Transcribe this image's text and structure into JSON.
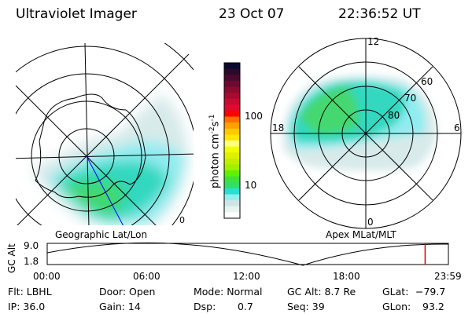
{
  "header": {
    "instrument": "Ultraviolet Imager",
    "date": "23 Oct 07",
    "time": "22:36:52 UT"
  },
  "left_map": {
    "label": "Geographic Lat/Lon"
  },
  "right_map": {
    "label": "Apex MLat/MLT",
    "mlt_labels": [
      "12",
      "6",
      "0",
      "18"
    ],
    "lat_labels": [
      "60",
      "70",
      "80"
    ]
  },
  "colorbar": {
    "unit_label": "photon cm",
    "unit_sup1": "-2",
    "unit_s": "s",
    "unit_sup2": "-1",
    "tick_labels": [
      "100",
      "10"
    ],
    "colors": [
      "#0a0a30",
      "#2a0a28",
      "#4a0a30",
      "#6a0a30",
      "#8a0a30",
      "#a80a30",
      "#c80a30",
      "#e00a30",
      "#ff0000",
      "#ff7000",
      "#ffa000",
      "#ffc800",
      "#ffe600",
      "#ffff80",
      "#f0ff00",
      "#e0f000",
      "#c0f000",
      "#a0f000",
      "#60f000",
      "#40e040",
      "#30e060",
      "#28e0d0",
      "#90f0f0",
      "#d0e4e4",
      "#e8f4f0",
      "#ffffff"
    ]
  },
  "altitude_plot": {
    "ylabel": "GC Alt",
    "y_ticks": [
      "9.0",
      "1.8"
    ],
    "x_ticks": [
      "00:00",
      "06:00",
      "12:00",
      "18:00",
      "23:59"
    ],
    "current_time_fraction": 0.942,
    "accent": "#e00000"
  },
  "info": {
    "flt": "Flt: LBHL",
    "ip": "IP: 36.0",
    "door": "Door: Open",
    "gain": "Gain: 14",
    "mode": "Mode: Normal",
    "dsp_label": "Dsp:",
    "dsp_value": "0.7",
    "gc_alt": "GC Alt: 8.7 Re",
    "seq": "Seq: 39",
    "glat_label": "GLat:",
    "glat_value": "−79.7",
    "glon_label": "GLon:",
    "glon_value": "93.2"
  }
}
